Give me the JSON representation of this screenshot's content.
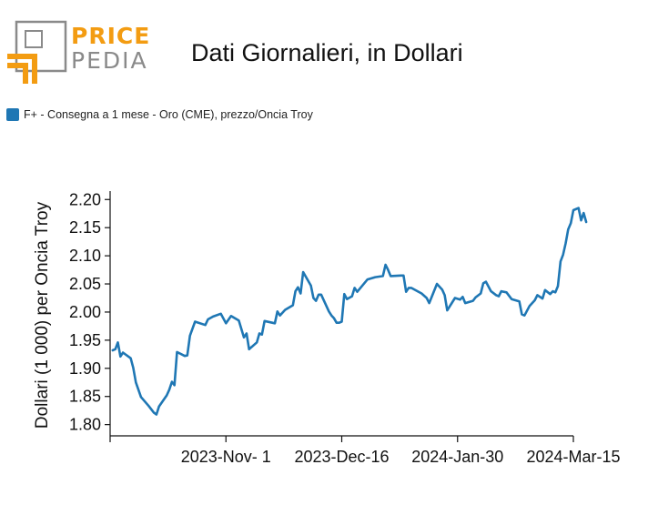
{
  "brand": {
    "name_top": "PRICE",
    "name_bottom": "PEDIA",
    "accent_color": "#f39c12",
    "gray_color": "#8a8a8a"
  },
  "header": {
    "title": "Dati Giornalieri, in Dollari"
  },
  "legend": {
    "label": "F+ - Consegna a 1 mese - Oro (CME), prezzo/Oncia Troy",
    "color": "#1f77b4"
  },
  "chart_data": {
    "type": "line",
    "title": "Dati Giornalieri, in Dollari",
    "xlabel": "",
    "ylabel": "Dollari (1 000) per Oncia Troy",
    "ylim": [
      1.78,
      2.215
    ],
    "xlim": [
      "2023-09-17",
      "2024-03-15"
    ],
    "y_ticks": [
      1.8,
      1.85,
      1.9,
      1.95,
      2.0,
      2.05,
      2.1,
      2.15,
      2.2
    ],
    "y_tick_labels": [
      "1.80",
      "1.85",
      "1.90",
      "1.95",
      "2.00",
      "2.05",
      "2.10",
      "2.15",
      "2.20"
    ],
    "x_ticks": [
      "2023-09-17",
      "2023-11-01",
      "2023-12-16",
      "2024-01-30",
      "2024-03-15"
    ],
    "x_tick_labels": [
      "",
      "2023-Nov- 1",
      "2023-Dec-16",
      "2024-Jan-30",
      "2024-Mar-15"
    ],
    "grid": false,
    "legend_position": "top-left",
    "series": [
      {
        "name": "F+ - Consegna a 1 mese - Oro (CME), prezzo/Oncia Troy",
        "color": "#1f77b4",
        "points": [
          [
            "2023-09-18",
            1.932
          ],
          [
            "2023-09-19",
            1.934
          ],
          [
            "2023-09-20",
            1.946
          ],
          [
            "2023-09-21",
            1.921
          ],
          [
            "2023-09-22",
            1.928
          ],
          [
            "2023-09-25",
            1.918
          ],
          [
            "2023-09-26",
            1.901
          ],
          [
            "2023-09-27",
            1.875
          ],
          [
            "2023-09-29",
            1.849
          ],
          [
            "2023-10-02",
            1.833
          ],
          [
            "2023-10-04",
            1.821
          ],
          [
            "2023-10-05",
            1.818
          ],
          [
            "2023-10-06",
            1.832
          ],
          [
            "2023-10-09",
            1.852
          ],
          [
            "2023-10-10",
            1.862
          ],
          [
            "2023-10-11",
            1.876
          ],
          [
            "2023-10-12",
            1.87
          ],
          [
            "2023-10-13",
            1.929
          ],
          [
            "2023-10-16",
            1.922
          ],
          [
            "2023-10-17",
            1.923
          ],
          [
            "2023-10-18",
            1.958
          ],
          [
            "2023-10-20",
            1.983
          ],
          [
            "2023-10-24",
            1.977
          ],
          [
            "2023-10-25",
            1.987
          ],
          [
            "2023-10-27",
            1.992
          ],
          [
            "2023-10-30",
            1.997
          ],
          [
            "2023-11-01",
            1.98
          ],
          [
            "2023-11-03",
            1.993
          ],
          [
            "2023-11-06",
            1.985
          ],
          [
            "2023-11-07",
            1.97
          ],
          [
            "2023-11-08",
            1.955
          ],
          [
            "2023-11-09",
            1.962
          ],
          [
            "2023-11-10",
            1.934
          ],
          [
            "2023-11-13",
            1.946
          ],
          [
            "2023-11-14",
            1.962
          ],
          [
            "2023-11-15",
            1.96
          ],
          [
            "2023-11-16",
            1.984
          ],
          [
            "2023-11-20",
            1.98
          ],
          [
            "2023-11-21",
            2.001
          ],
          [
            "2023-11-22",
            1.994
          ],
          [
            "2023-11-24",
            2.004
          ],
          [
            "2023-11-27",
            2.012
          ],
          [
            "2023-11-28",
            2.037
          ],
          [
            "2023-11-29",
            2.044
          ],
          [
            "2023-11-30",
            2.033
          ],
          [
            "2023-12-01",
            2.071
          ],
          [
            "2023-12-04",
            2.047
          ],
          [
            "2023-12-05",
            2.025
          ],
          [
            "2023-12-06",
            2.02
          ],
          [
            "2023-12-07",
            2.031
          ],
          [
            "2023-12-08",
            2.031
          ],
          [
            "2023-12-11",
            2.001
          ],
          [
            "2023-12-12",
            1.994
          ],
          [
            "2023-12-13",
            1.989
          ],
          [
            "2023-12-14",
            1.981
          ],
          [
            "2023-12-15",
            1.981
          ],
          [
            "2023-12-16",
            1.983
          ],
          [
            "2023-12-17",
            2.032
          ],
          [
            "2023-12-18",
            2.023
          ],
          [
            "2023-12-20",
            2.028
          ],
          [
            "2023-12-21",
            2.043
          ],
          [
            "2023-12-22",
            2.036
          ],
          [
            "2023-12-26",
            2.058
          ],
          [
            "2023-12-29",
            2.062
          ],
          [
            "2024-01-01",
            2.064
          ],
          [
            "2024-01-02",
            2.084
          ],
          [
            "2024-01-03",
            2.075
          ],
          [
            "2024-01-04",
            2.064
          ],
          [
            "2024-01-08",
            2.065
          ],
          [
            "2024-01-09",
            2.065
          ],
          [
            "2024-01-10",
            2.036
          ],
          [
            "2024-01-11",
            2.043
          ],
          [
            "2024-01-12",
            2.043
          ],
          [
            "2024-01-16",
            2.033
          ],
          [
            "2024-01-18",
            2.025
          ],
          [
            "2024-01-19",
            2.016
          ],
          [
            "2024-01-22",
            2.05
          ],
          [
            "2024-01-24",
            2.04
          ],
          [
            "2024-01-25",
            2.03
          ],
          [
            "2024-01-26",
            2.003
          ],
          [
            "2024-01-29",
            2.025
          ],
          [
            "2024-01-31",
            2.022
          ],
          [
            "2024-02-01",
            2.027
          ],
          [
            "2024-02-02",
            2.016
          ],
          [
            "2024-02-05",
            2.02
          ],
          [
            "2024-02-06",
            2.026
          ],
          [
            "2024-02-08",
            2.033
          ],
          [
            "2024-02-09",
            2.051
          ],
          [
            "2024-02-10",
            2.054
          ],
          [
            "2024-02-12",
            2.037
          ],
          [
            "2024-02-14",
            2.03
          ],
          [
            "2024-02-15",
            2.028
          ],
          [
            "2024-02-16",
            2.037
          ],
          [
            "2024-02-18",
            2.035
          ],
          [
            "2024-02-20",
            2.023
          ],
          [
            "2024-02-23",
            2.019
          ],
          [
            "2024-02-24",
            1.996
          ],
          [
            "2024-02-25",
            1.994
          ],
          [
            "2024-02-27",
            2.011
          ],
          [
            "2024-02-29",
            2.021
          ],
          [
            "2024-03-01",
            2.03
          ],
          [
            "2024-03-03",
            2.024
          ],
          [
            "2024-03-04",
            2.039
          ],
          [
            "2024-03-06",
            2.032
          ],
          [
            "2024-03-07",
            2.037
          ],
          [
            "2024-03-08",
            2.035
          ],
          [
            "2024-03-09",
            2.046
          ],
          [
            "2024-03-10",
            2.09
          ],
          [
            "2024-03-11",
            2.102
          ],
          [
            "2024-03-12",
            2.122
          ],
          [
            "2024-03-13",
            2.147
          ],
          [
            "2024-03-14",
            2.158
          ],
          [
            "2024-03-15",
            2.181
          ],
          [
            "2024-03-17",
            2.185
          ],
          [
            "2024-03-18",
            2.163
          ],
          [
            "2024-03-19",
            2.176
          ],
          [
            "2024-03-20",
            2.16
          ]
        ]
      }
    ]
  }
}
